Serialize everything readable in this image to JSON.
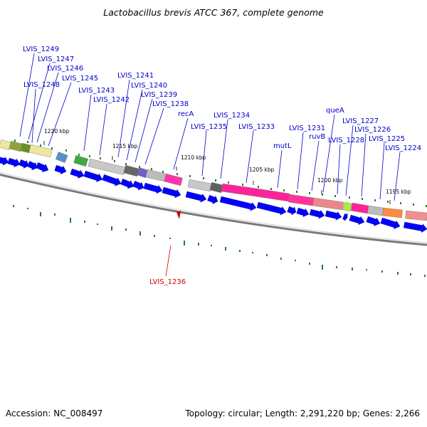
{
  "title": "Lactobacillus brevis ATCC 367, complete genome",
  "footer": {
    "accession": "Accession: NC_008497",
    "topology": "Topology: circular; Length: 2,291,220 bp; Genes: 2,266"
  },
  "colors": {
    "gene_label": "#0000cc",
    "highlight_label": "#cc0000",
    "cds_arrow": "#0000ff",
    "gc_tick": "#2a7d2a",
    "backbone": "#808080"
  },
  "scale_labels": [
    "1220 kbp",
    "1215 kbp",
    "1210 kbp",
    "1205 kbp",
    "1200 kbp",
    "1195 kbp"
  ],
  "gene_labels": [
    "LVIS_1249",
    "LVIS_1247",
    "LVIS_1246",
    "LVIS_1245",
    "LVIS_1248",
    "LVIS_1243",
    "LVIS_1241",
    "LVIS_1240",
    "LVIS_1239",
    "LVIS_1242",
    "LVIS_1238",
    "recA",
    "LVIS_1234",
    "LVIS_1235",
    "LVIS_1233",
    "queA",
    "LVIS_1227",
    "LVIS_1231",
    "ruvB",
    "LVIS_1226",
    "mutL",
    "LVIS_1228",
    "LVIS_1225",
    "LVIS_1224"
  ],
  "highlight_label": "LVIS_1236"
}
